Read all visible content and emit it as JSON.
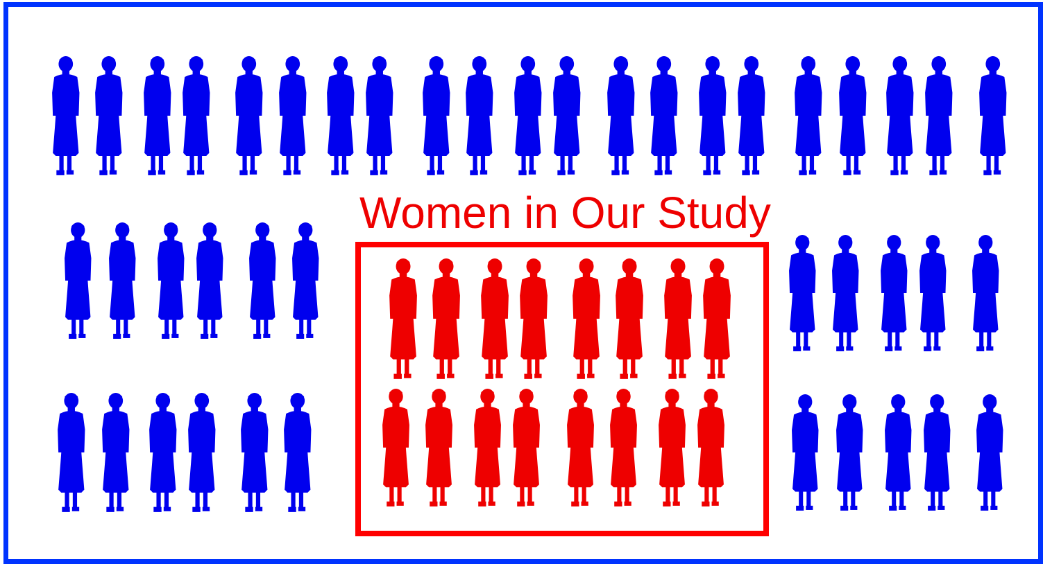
{
  "caption": "Women in Our Study",
  "colors": {
    "population": "#0000ee",
    "sample": "#ee0000",
    "frame": "#0033ff",
    "sample_box": "#ff0000"
  },
  "icon": "standing-woman-silhouette-icon",
  "counts": {
    "population_total": 61,
    "sample": 16,
    "not_in_sample": 45
  }
}
